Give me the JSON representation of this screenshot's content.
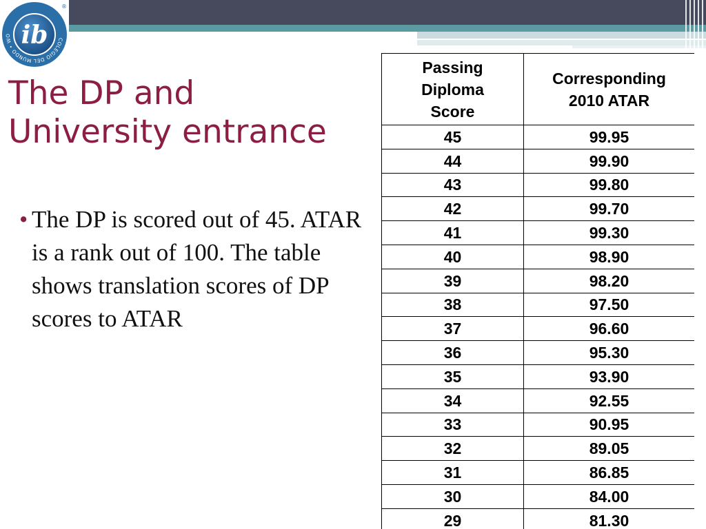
{
  "logo": {
    "letters": "ib",
    "ring_text": "COLEGIO DEL MUNDO • WORLD SCHOOL • ÉCOLE DU MONDE •",
    "registered_mark": "®",
    "colors": {
      "ring": "#2b6fa8",
      "inner": "#1a4f86",
      "letters": "#ffffff"
    }
  },
  "slide": {
    "title_line1": "The DP and",
    "title_line2": "University entrance",
    "bullet_marker": "•",
    "bullet_text": "The DP is scored out of 45.  ATAR is a rank out of 100. The table shows translation scores of DP scores to ATAR",
    "colors": {
      "title": "#8c1d44",
      "body": "#111111",
      "band_dark": "#474a5c",
      "band_teal": "#5a9aa0"
    }
  },
  "table": {
    "headers": {
      "col1": "Passing Diploma Score",
      "col2": "Corresponding 2010 ATAR"
    },
    "rows": [
      {
        "dp": "45",
        "atar": "99.95"
      },
      {
        "dp": "44",
        "atar": "99.90"
      },
      {
        "dp": "43",
        "atar": "99.80"
      },
      {
        "dp": "42",
        "atar": "99.70"
      },
      {
        "dp": "41",
        "atar": "99.30"
      },
      {
        "dp": "40",
        "atar": "98.90"
      },
      {
        "dp": "39",
        "atar": "98.20"
      },
      {
        "dp": "38",
        "atar": "97.50"
      },
      {
        "dp": "37",
        "atar": "96.60"
      },
      {
        "dp": "36",
        "atar": "95.30"
      },
      {
        "dp": "35",
        "atar": "93.90"
      },
      {
        "dp": "34",
        "atar": "92.55"
      },
      {
        "dp": "33",
        "atar": "90.95"
      },
      {
        "dp": "32",
        "atar": "89.05"
      },
      {
        "dp": "31",
        "atar": "86.85"
      },
      {
        "dp": "30",
        "atar": "84.00"
      },
      {
        "dp": "29",
        "atar": "81.30"
      }
    ]
  }
}
